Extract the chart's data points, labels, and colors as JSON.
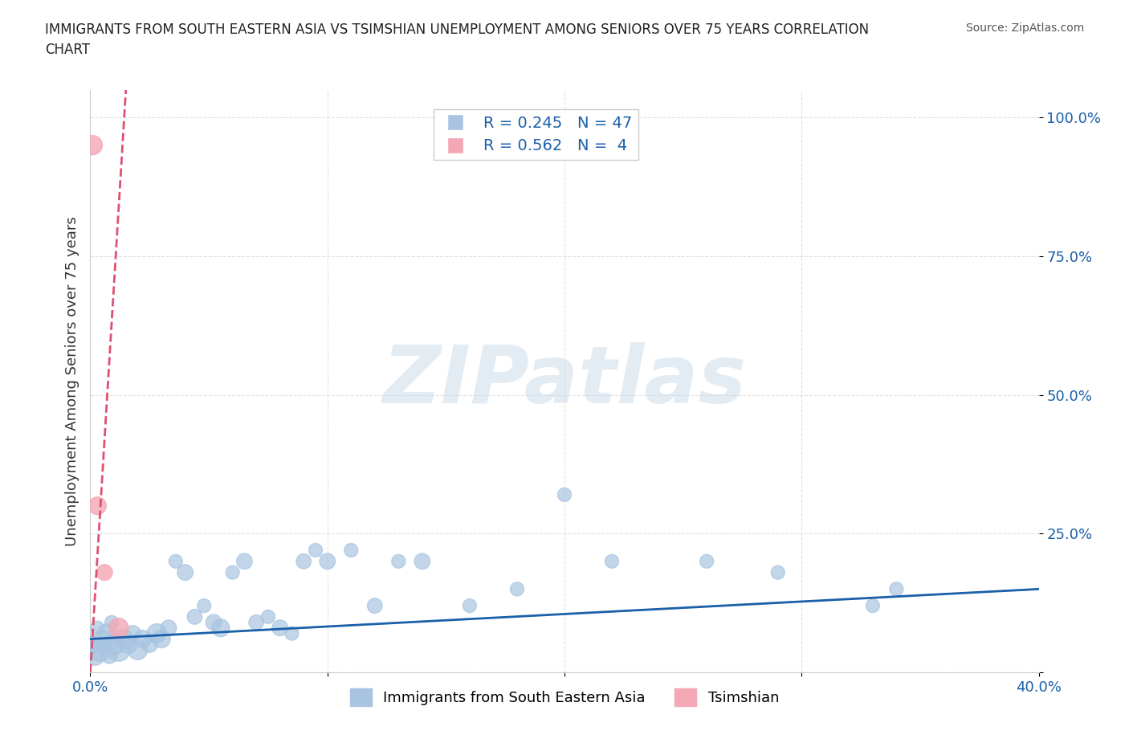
{
  "title": "IMMIGRANTS FROM SOUTH EASTERN ASIA VS TSIMSHIAN UNEMPLOYMENT AMONG SENIORS OVER 75 YEARS CORRELATION\nCHART",
  "source": "Source: ZipAtlas.com",
  "xlabel": "",
  "ylabel": "Unemployment Among Seniors over 75 years",
  "xlim": [
    0.0,
    0.4
  ],
  "ylim": [
    0.0,
    1.05
  ],
  "yticks": [
    0.0,
    0.25,
    0.5,
    0.75,
    1.0
  ],
  "ytick_labels": [
    "",
    "25.0%",
    "50.0%",
    "75.0%",
    "100.0%"
  ],
  "xticks": [
    0.0,
    0.1,
    0.2,
    0.3,
    0.4
  ],
  "xtick_labels": [
    "0.0%",
    "",
    "",
    "",
    "40.0%"
  ],
  "blue_R": 0.245,
  "blue_N": 47,
  "pink_R": 0.562,
  "pink_N": 4,
  "blue_color": "#a8c4e0",
  "blue_line_color": "#1a5fa8",
  "pink_color": "#f4a7b5",
  "pink_line_color": "#e05070",
  "watermark": "ZIPatlas",
  "watermark_color": "#c8d8e8",
  "blue_scatter_x": [
    0.001,
    0.002,
    0.003,
    0.004,
    0.005,
    0.006,
    0.007,
    0.008,
    0.009,
    0.01,
    0.012,
    0.014,
    0.016,
    0.018,
    0.02,
    0.022,
    0.025,
    0.028,
    0.03,
    0.033,
    0.036,
    0.04,
    0.044,
    0.048,
    0.052,
    0.055,
    0.06,
    0.065,
    0.07,
    0.075,
    0.08,
    0.085,
    0.09,
    0.095,
    0.1,
    0.11,
    0.12,
    0.13,
    0.14,
    0.16,
    0.18,
    0.2,
    0.22,
    0.26,
    0.29,
    0.33,
    0.34
  ],
  "blue_scatter_y": [
    0.05,
    0.03,
    0.08,
    0.04,
    0.06,
    0.05,
    0.07,
    0.03,
    0.09,
    0.05,
    0.04,
    0.06,
    0.05,
    0.07,
    0.04,
    0.06,
    0.05,
    0.07,
    0.06,
    0.08,
    0.2,
    0.18,
    0.1,
    0.12,
    0.09,
    0.08,
    0.18,
    0.2,
    0.09,
    0.1,
    0.08,
    0.07,
    0.2,
    0.22,
    0.2,
    0.22,
    0.12,
    0.2,
    0.2,
    0.12,
    0.15,
    0.32,
    0.2,
    0.2,
    0.18,
    0.12,
    0.15
  ],
  "blue_scatter_sizes": [
    200,
    300,
    150,
    400,
    250,
    180,
    300,
    200,
    150,
    350,
    400,
    300,
    250,
    200,
    300,
    250,
    200,
    300,
    250,
    200,
    150,
    200,
    180,
    150,
    200,
    250,
    150,
    200,
    180,
    150,
    200,
    150,
    180,
    150,
    200,
    150,
    180,
    150,
    200,
    150,
    150,
    150,
    150,
    150,
    150,
    150,
    150
  ],
  "pink_scatter_x": [
    0.001,
    0.003,
    0.006,
    0.012
  ],
  "pink_scatter_y": [
    0.95,
    0.3,
    0.18,
    0.08
  ],
  "pink_scatter_sizes": [
    300,
    250,
    200,
    300
  ],
  "blue_trend_x": [
    0.0,
    0.4
  ],
  "blue_trend_y": [
    0.06,
    0.15
  ],
  "pink_trend_x": [
    0.0,
    0.015
  ],
  "pink_trend_y": [
    0.0,
    1.05
  ]
}
